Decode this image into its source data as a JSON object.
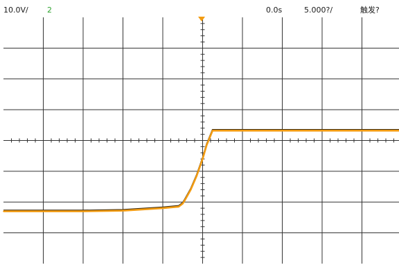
{
  "status_bar": {
    "volts_per_div": "10.0V/",
    "channel": "2",
    "delay": "0.0s",
    "time_per_div": "5.000?/",
    "trigger_status": "触发?"
  },
  "colors": {
    "trace": "#f39c12",
    "trace_shadow": "#3a2a10",
    "grid": "#333333",
    "channel_label": "#2fa32f",
    "trigger_marker": "#f39c12"
  },
  "chart_data": {
    "type": "line",
    "title": "",
    "xlabel": "",
    "ylabel": "",
    "grid": true,
    "x_divisions": 10,
    "y_divisions": 8,
    "xlim": [
      -5,
      5
    ],
    "ylim": [
      -4,
      4
    ],
    "series": [
      {
        "x": [
          -5.0,
          -3.0,
          -2.0,
          -1.0,
          -0.6,
          -0.5,
          -0.45,
          -0.3,
          -0.15,
          0.0,
          0.1,
          0.25,
          0.5,
          1.0,
          2.0,
          3.0,
          5.0
        ],
        "y": [
          -2.3,
          -2.3,
          -2.28,
          -2.2,
          -2.15,
          -2.05,
          -1.95,
          -1.6,
          -1.15,
          -0.6,
          -0.15,
          0.32,
          0.32,
          0.32,
          0.32,
          0.32,
          0.32
        ]
      }
    ]
  }
}
